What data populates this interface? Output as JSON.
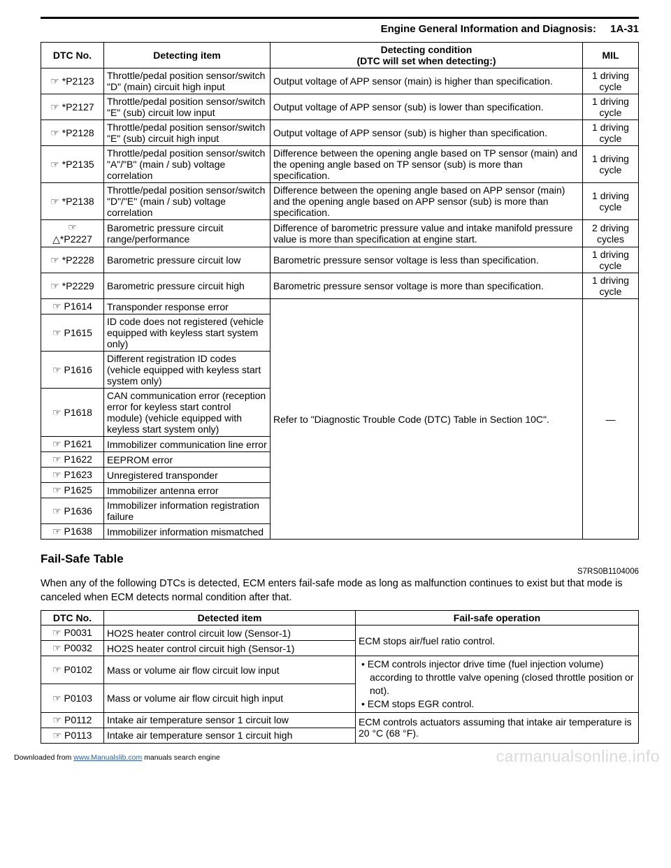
{
  "header": {
    "title": "Engine General Information and Diagnosis:",
    "page": "1A-31"
  },
  "sym_hand": "☞",
  "sym_tri": "△",
  "dash": "—",
  "dtc_table": {
    "headers": {
      "no": "DTC No.",
      "item": "Detecting item",
      "cond_l1": "Detecting condition",
      "cond_l2": "(DTC will set when detecting:)",
      "mil": "MIL"
    },
    "rows_top": [
      {
        "no": "*P2123",
        "item": "Throttle/pedal position sensor/switch \"D\" (main) circuit high input",
        "cond": "Output voltage of APP sensor (main) is higher than specification.",
        "mil": "1 driving cycle"
      },
      {
        "no": "*P2127",
        "item": "Throttle/pedal position sensor/switch \"E\" (sub) circuit low input",
        "cond": "Output voltage of APP sensor (sub) is lower than specification.",
        "mil": "1 driving cycle"
      },
      {
        "no": "*P2128",
        "item": "Throttle/pedal position sensor/switch \"E\" (sub) circuit high input",
        "cond": "Output voltage of APP sensor (sub) is higher than specification.",
        "mil": "1 driving cycle"
      },
      {
        "no": "*P2135",
        "item": "Throttle/pedal position sensor/switch \"A\"/\"B\" (main / sub) voltage correlation",
        "cond": "Difference between the opening angle based on TP sensor (main) and the opening angle based on TP sensor (sub) is more than specification.",
        "mil": "1 driving cycle"
      },
      {
        "no": "*P2138",
        "item": "Throttle/pedal position sensor/switch \"D\"/\"E\" (main / sub) voltage correlation",
        "cond": "Difference between the opening angle based on APP sensor (main) and the opening angle based on APP sensor (sub) is more than specification.",
        "mil": "1 driving cycle"
      },
      {
        "no": "*P2227",
        "tri": true,
        "item": "Barometric pressure circuit range/performance",
        "cond": "Difference of barometric pressure value and intake manifold pressure value is more than specification at engine start.",
        "mil": "2 driving cycles"
      },
      {
        "no": "*P2228",
        "item": "Barometric pressure circuit low",
        "cond": "Barometric pressure sensor voltage is less than specification.",
        "mil": "1 driving cycle"
      },
      {
        "no": "*P2229",
        "item": "Barometric pressure circuit high",
        "cond": "Barometric pressure sensor voltage is more than specification.",
        "mil": "1 driving cycle"
      }
    ],
    "group_cond": "Refer to \"Diagnostic Trouble Code (DTC) Table in Section 10C\".",
    "group_rows": [
      {
        "no": "P1614",
        "item": "Transponder response error"
      },
      {
        "no": "P1615",
        "item": "ID code does not registered (vehicle equipped with keyless start system only)"
      },
      {
        "no": "P1616",
        "item": "Different registration ID codes (vehicle equipped with keyless start system only)"
      },
      {
        "no": "P1618",
        "item": "CAN communication error (reception error for keyless start control module) (vehicle equipped with keyless start system only)"
      },
      {
        "no": "P1621",
        "item": "Immobilizer communication line error"
      },
      {
        "no": "P1622",
        "item": "EEPROM error"
      },
      {
        "no": "P1623",
        "item": "Unregistered transponder"
      },
      {
        "no": "P1625",
        "item": "Immobilizer antenna error"
      },
      {
        "no": "P1636",
        "item": "Immobilizer information registration failure"
      },
      {
        "no": "P1638",
        "item": "Immobilizer information mismatched"
      }
    ]
  },
  "failsafe": {
    "heading": "Fail-Safe Table",
    "refcode": "S7RS0B1104006",
    "intro": "When any of the following DTCs is detected, ECM enters fail-safe mode as long as malfunction continues to exist but that mode is canceled when ECM detects normal condition after that.",
    "headers": {
      "no": "DTC No.",
      "item": "Detected item",
      "op": "Fail-safe operation"
    }
  },
  "footer": {
    "pre": "Downloaded from ",
    "link": "www.Manualslib.com",
    "post": " manuals search engine",
    "watermark": "carmanualsonline.info"
  }
}
